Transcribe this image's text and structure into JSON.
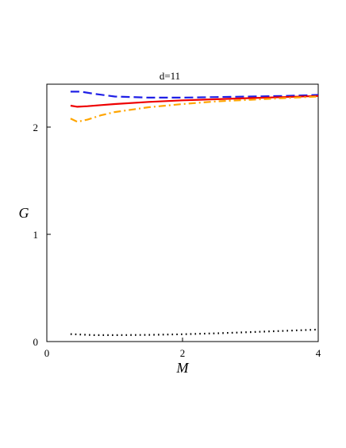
{
  "chart_data": {
    "type": "line",
    "title": "d=11",
    "xlabel": "M",
    "ylabel": "G",
    "xlim": [
      0,
      4
    ],
    "ylim": [
      0,
      2.4
    ],
    "grid": false,
    "legend": "none",
    "x_ticks": [
      {
        "value": 0,
        "label": "0"
      },
      {
        "value": 2,
        "label": "2"
      },
      {
        "value": 4,
        "label": "4"
      }
    ],
    "y_ticks": [
      {
        "value": 0,
        "label": "0"
      },
      {
        "value": 1,
        "label": "1"
      },
      {
        "value": 2,
        "label": "2"
      }
    ],
    "series": [
      {
        "color": "#1f1fe6",
        "style": "dashed",
        "points": [
          [
            0.35,
            2.33
          ],
          [
            0.5,
            2.33
          ],
          [
            0.7,
            2.31
          ],
          [
            1.0,
            2.285
          ],
          [
            1.5,
            2.275
          ],
          [
            2.0,
            2.275
          ],
          [
            2.5,
            2.28
          ],
          [
            3.0,
            2.285
          ],
          [
            3.5,
            2.29
          ],
          [
            4.0,
            2.3
          ]
        ]
      },
      {
        "color": "#ee0000",
        "style": "solid",
        "points": [
          [
            0.35,
            2.2
          ],
          [
            0.45,
            2.19
          ],
          [
            0.6,
            2.195
          ],
          [
            0.8,
            2.205
          ],
          [
            1.0,
            2.215
          ],
          [
            1.5,
            2.235
          ],
          [
            2.0,
            2.25
          ],
          [
            2.5,
            2.26
          ],
          [
            3.0,
            2.27
          ],
          [
            3.5,
            2.28
          ],
          [
            4.0,
            2.29
          ]
        ]
      },
      {
        "color": "#ffa500",
        "style": "dashdot",
        "points": [
          [
            0.35,
            2.08
          ],
          [
            0.45,
            2.05
          ],
          [
            0.6,
            2.07
          ],
          [
            0.8,
            2.11
          ],
          [
            1.0,
            2.14
          ],
          [
            1.5,
            2.185
          ],
          [
            2.0,
            2.215
          ],
          [
            2.5,
            2.24
          ],
          [
            3.0,
            2.255
          ],
          [
            3.5,
            2.27
          ],
          [
            4.0,
            2.285
          ]
        ]
      },
      {
        "color": "#000000",
        "style": "dotted",
        "points": [
          [
            0.35,
            0.07
          ],
          [
            0.7,
            0.06
          ],
          [
            1.0,
            0.06
          ],
          [
            1.5,
            0.062
          ],
          [
            2.0,
            0.068
          ],
          [
            2.5,
            0.077
          ],
          [
            3.0,
            0.088
          ],
          [
            3.5,
            0.1
          ],
          [
            4.0,
            0.112
          ]
        ]
      }
    ]
  }
}
